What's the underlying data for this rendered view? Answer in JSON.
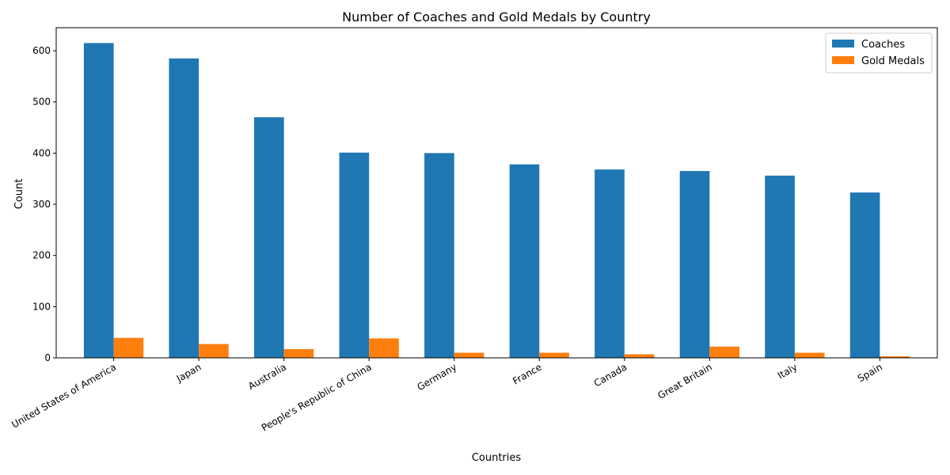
{
  "chart_data": {
    "type": "bar",
    "title": "Number of Coaches and Gold Medals by Country",
    "xlabel": "Countries",
    "ylabel": "Count",
    "ylim": [
      0,
      645
    ],
    "yticks": [
      0,
      100,
      200,
      300,
      400,
      500,
      600
    ],
    "categories": [
      "United States of America",
      "Japan",
      "Australia",
      "People's Republic of China",
      "Germany",
      "France",
      "Canada",
      "Great Britain",
      "Italy",
      "Spain"
    ],
    "series": [
      {
        "name": "Coaches",
        "color": "#1f77b4",
        "values": [
          615,
          585,
          470,
          401,
          400,
          378,
          368,
          365,
          356,
          323
        ]
      },
      {
        "name": "Gold Medals",
        "color": "#ff7f0e",
        "values": [
          39,
          27,
          17,
          38,
          10,
          10,
          7,
          22,
          10,
          3
        ]
      }
    ],
    "legend_position": "top-right",
    "grid": false
  }
}
